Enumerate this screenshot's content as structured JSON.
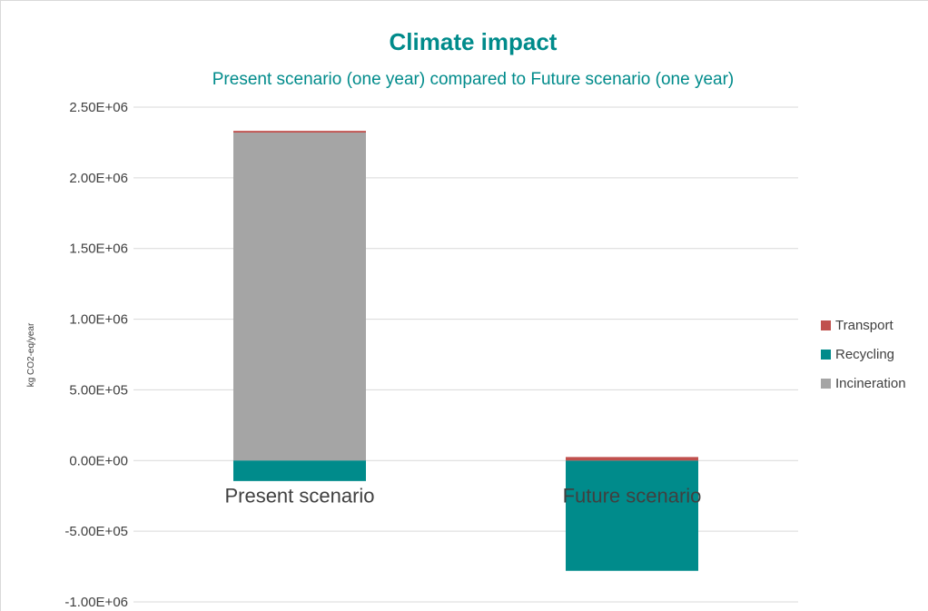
{
  "chart_data": {
    "type": "bar",
    "stacked": true,
    "title": "Climate impact",
    "subtitle": "Present scenario (one year)  compared to Future scenario (one year)",
    "ylabel": "kg CO2-eq/year",
    "xlabel": "",
    "categories": [
      "Present scenario",
      "Future scenario"
    ],
    "ylim": [
      -1000000,
      2500000
    ],
    "yticks": [
      -1000000,
      -500000,
      0,
      500000,
      1000000,
      1500000,
      2000000,
      2500000
    ],
    "ytick_labels": [
      "-1.00E+06",
      "-5.00E+05",
      "0.00E+00",
      "5.00E+05",
      "1.00E+06",
      "1.50E+06",
      "2.00E+06",
      "2.50E+06"
    ],
    "grid": true,
    "legend_position": "right",
    "series": [
      {
        "name": "Incineration",
        "values": [
          2320000,
          0
        ],
        "color": "#a5a5a5"
      },
      {
        "name": "Recycling",
        "values": [
          -145000,
          -780000
        ],
        "color": "#008b8b"
      },
      {
        "name": "Transport",
        "values": [
          12000,
          25000
        ],
        "color": "#c0504d"
      }
    ],
    "legend_order": [
      "Transport",
      "Recycling",
      "Incineration"
    ],
    "colors": {
      "title": "#008b8b",
      "text": "#404040",
      "grid": "#d9d9d9"
    }
  }
}
